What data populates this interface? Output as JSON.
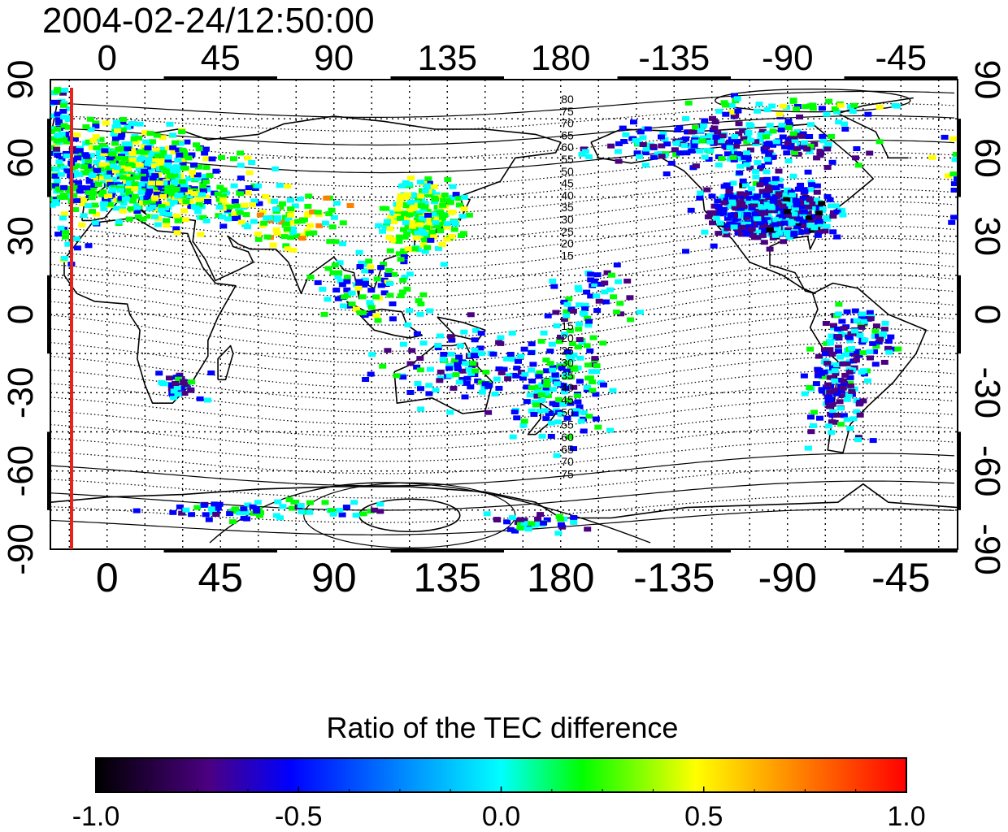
{
  "title": "2004-02-24/12:50:00",
  "map": {
    "lon_ticks": [
      "0",
      "45",
      "90",
      "135",
      "180",
      "-135",
      "-90",
      "-45"
    ],
    "lat_ticks": [
      "90",
      "60",
      "30",
      "0",
      "-30",
      "-60",
      "-90"
    ],
    "magnetic_contours_north": [
      "80",
      "75",
      "70",
      "65",
      "60",
      "55",
      "50",
      "45",
      "40",
      "35",
      "30",
      "25",
      "20",
      "15"
    ],
    "magnetic_contours_south": [
      "15",
      "20",
      "25",
      "30",
      "35",
      "40",
      "45",
      "50",
      "55",
      "60",
      "65",
      "70",
      "75"
    ],
    "colors": {
      "terminator": "#e8221c",
      "coastline": "#000000",
      "grid": "#000000"
    }
  },
  "colorbar": {
    "title": "Ratio of the TEC difference",
    "tick_labels": [
      "-1.0",
      "-0.5",
      "0.0",
      "0.5",
      "1.0"
    ],
    "range": [
      -1.0,
      1.0
    ],
    "stops": [
      "#000000",
      "#4b0082",
      "#0000ff",
      "#00ffff",
      "#00ff00",
      "#ffff00",
      "#ff7f00",
      "#ff0000"
    ]
  }
}
